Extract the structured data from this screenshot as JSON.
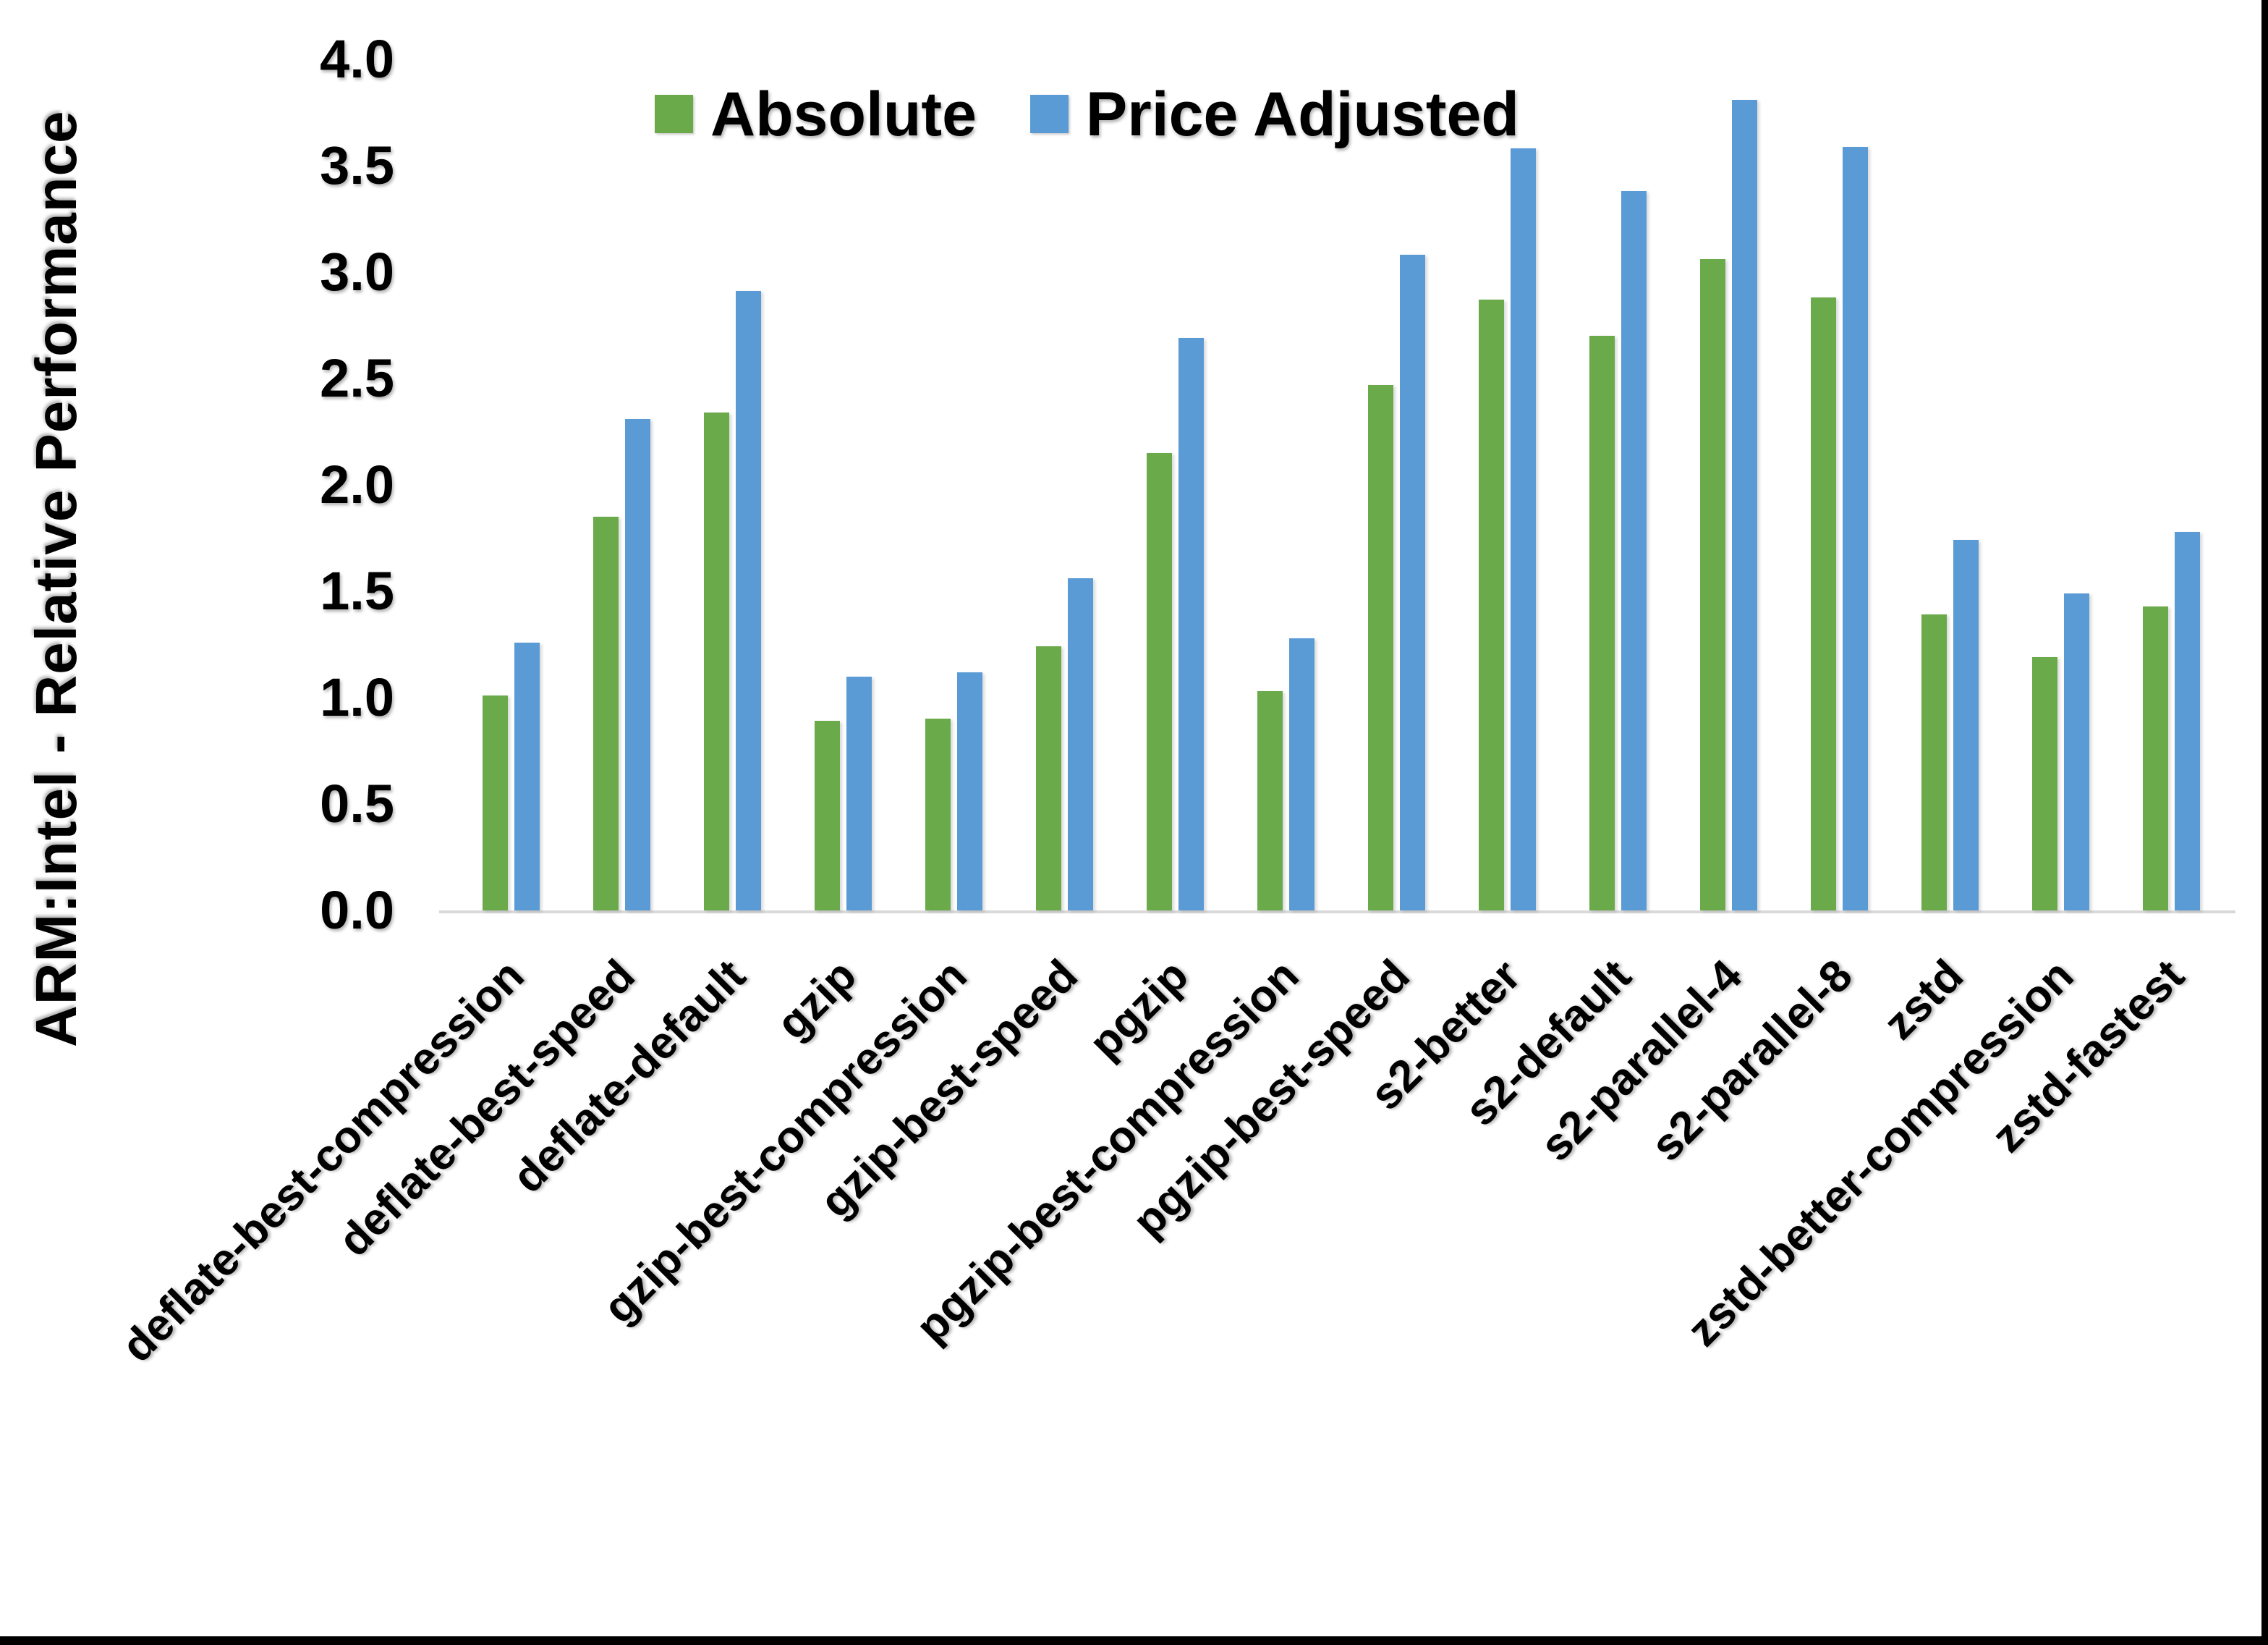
{
  "figure": {
    "background": "#ffffff",
    "edge_border_color": "#000000"
  },
  "chart_data": {
    "type": "bar",
    "title": "",
    "xlabel": "",
    "ylabel": "ARM:Intel - Relative Performance",
    "ylim": [
      0.0,
      4.0
    ],
    "ytick_step": 0.5,
    "ytick_labels": [
      "4.0",
      "3.5",
      "3.0",
      "2.5",
      "2.0",
      "1.5",
      "1.0",
      "0.5",
      "0.0"
    ],
    "grid": false,
    "legend_position": "top-center",
    "axis_line_color": "#d9d9d9",
    "categories": [
      "deflate-best-compression",
      "deflate-best-speed",
      "deflate-default",
      "gzip",
      "gzip-best-compression",
      "gzip-best-speed",
      "pgzip",
      "pgzip-best-compression",
      "pgzip-best-speed",
      "s2-better",
      "s2-default",
      "s2-parallel-4",
      "s2-parallel-8",
      "zstd",
      "zstd-better-compression",
      "zstd-fastest"
    ],
    "series": [
      {
        "name": "Absolute",
        "color": "#6aaa4b",
        "values": [
          1.01,
          1.85,
          2.34,
          0.89,
          0.9,
          1.24,
          2.15,
          1.03,
          2.47,
          2.87,
          2.7,
          3.06,
          2.88,
          1.39,
          1.19,
          1.43
        ]
      },
      {
        "name": "Price Adjusted",
        "color": "#5b9bd5",
        "values": [
          1.26,
          2.31,
          2.91,
          1.1,
          1.12,
          1.56,
          2.69,
          1.28,
          3.08,
          3.58,
          3.38,
          3.81,
          3.59,
          1.74,
          1.49,
          1.78
        ]
      }
    ]
  }
}
